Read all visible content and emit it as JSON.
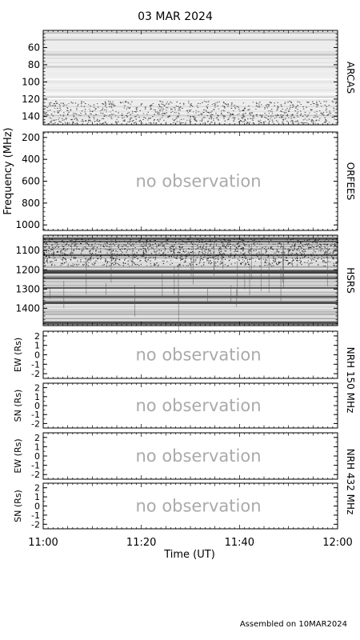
{
  "title": "03 MAR 2024",
  "footer": "Assembled on 10MAR2024",
  "chart_data": {
    "type": "heatmap",
    "x_axis": {
      "label": "Time (UT)",
      "range": [
        "11:00",
        "12:00"
      ],
      "range_minutes": [
        0,
        60
      ],
      "ticks": [
        {
          "label": "11:00",
          "minute": 0
        },
        {
          "label": "11:20",
          "minute": 20
        },
        {
          "label": "11:40",
          "minute": 40
        },
        {
          "label": "12:00",
          "minute": 60
        }
      ]
    },
    "y_axis_group_label": "Frequency (MHz)",
    "panels": [
      {
        "id": "arcas",
        "instrument": "ARCAS",
        "kind": "spectrogram",
        "observed": true,
        "yrange": [
          40,
          150
        ],
        "yticks": [
          60,
          80,
          100,
          120,
          140
        ],
        "yticklabels": [
          "60",
          "80",
          "100",
          "120",
          "140"
        ]
      },
      {
        "id": "orfees",
        "instrument": "ORFEES",
        "kind": "spectrogram",
        "observed": false,
        "status": "no observation",
        "yrange": [
          150,
          1050
        ],
        "yticks": [
          200,
          400,
          600,
          800,
          1000
        ],
        "yticklabels": [
          "200",
          "400",
          "600",
          "800",
          "1000"
        ]
      },
      {
        "id": "hsrs",
        "instrument": "HSRS",
        "kind": "spectrogram",
        "observed": true,
        "yrange": [
          1020,
          1490
        ],
        "yticks": [
          1100,
          1200,
          1300,
          1400
        ],
        "yticklabels": [
          "1100",
          "1200",
          "1300",
          "1400"
        ]
      },
      {
        "id": "nrh150-ew",
        "kind": "position",
        "observed": false,
        "status": "no observation",
        "ylabel": "EW (Rs)",
        "yrange": [
          -2.5,
          2.5
        ],
        "yticks": [
          2,
          1,
          0,
          -1,
          -2
        ],
        "yticklabels": [
          "2",
          "1",
          "0",
          "-1",
          "-2"
        ]
      },
      {
        "id": "nrh150-sn",
        "kind": "position",
        "observed": false,
        "status": "no observation",
        "ylabel": "SN (Rs)",
        "yrange": [
          -2.5,
          2.5
        ],
        "yticks": [
          2,
          1,
          0,
          -1,
          -2
        ],
        "yticklabels": [
          "2",
          "1",
          "0",
          "-1",
          "-2"
        ]
      },
      {
        "id": "nrh432-ew",
        "kind": "position",
        "observed": false,
        "status": "no observation",
        "ylabel": "EW (Rs)",
        "yrange": [
          -2.5,
          2.5
        ],
        "yticks": [
          2,
          1,
          0,
          -1,
          -2
        ],
        "yticklabels": [
          "2",
          "1",
          "0",
          "-1",
          "-2"
        ]
      },
      {
        "id": "nrh432-sn",
        "kind": "position",
        "observed": false,
        "status": "no observation",
        "ylabel": "SN (Rs)",
        "yrange": [
          -2.5,
          2.5
        ],
        "yticks": [
          2,
          1,
          0,
          -1,
          -2
        ],
        "yticklabels": [
          "2",
          "1",
          "0",
          "-1",
          "-2"
        ]
      }
    ],
    "side_labels": [
      {
        "id": "nrh150",
        "text": "NRH 150 MHz"
      },
      {
        "id": "nrh432",
        "text": "NRH 432 MHz"
      }
    ]
  }
}
